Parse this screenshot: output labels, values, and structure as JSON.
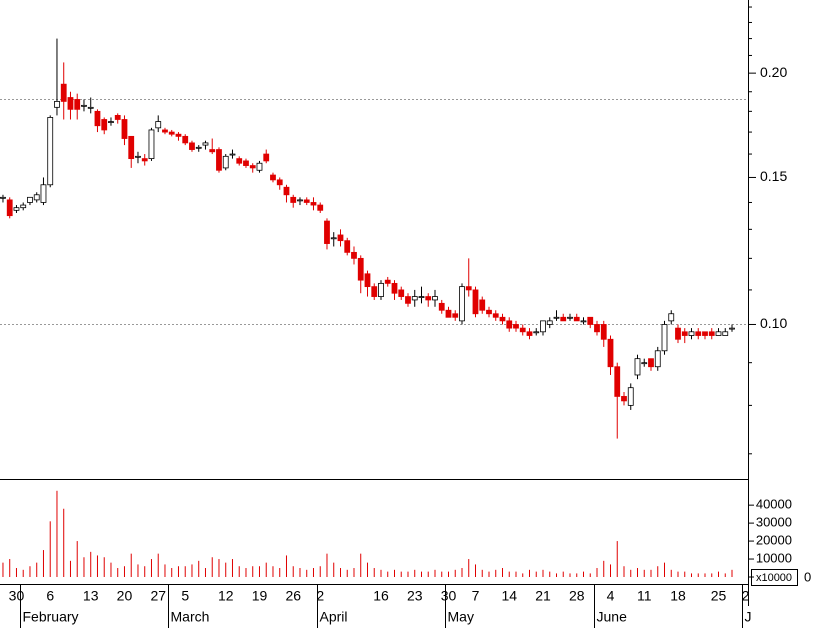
{
  "chart_data": {
    "type": "candlestick",
    "log_scale": true,
    "xlim": [
      -0.44,
      110.37
    ],
    "ylim": [
      0.0653,
      0.2447
    ],
    "yticks": [
      {
        "value": 0.2,
        "label": "0.20"
      },
      {
        "value": 0.15,
        "label": "0.15"
      },
      {
        "value": 0.1,
        "label": "0.10"
      }
    ],
    "yticks_minor": [
      0.24,
      0.23,
      0.22,
      0.21,
      0.19,
      0.18,
      0.17,
      0.16,
      0.14,
      0.13,
      0.12,
      0.11,
      0.09,
      0.08,
      0.07
    ],
    "hlines": [
      0.186,
      0.1
    ],
    "up_color": "#ffffff",
    "down_color": "#e00000",
    "open": [
      0.142,
      0.141,
      0.137,
      0.138,
      0.14,
      0.141,
      0.14,
      0.147,
      0.182,
      0.194,
      0.187,
      0.186,
      0.183,
      0.182,
      0.18,
      0.176,
      0.175,
      0.178,
      0.176,
      0.168,
      0.159,
      0.158,
      0.158,
      0.172,
      0.171,
      0.17,
      0.169,
      0.168,
      0.165,
      0.163,
      0.164,
      0.162,
      0.162,
      0.154,
      0.16,
      0.158,
      0.157,
      0.155,
      0.153,
      0.16,
      0.151,
      0.149,
      0.146,
      0.142,
      0.141,
      0.141,
      0.14,
      0.139,
      0.133,
      0.127,
      0.128,
      0.126,
      0.122,
      0.12,
      0.115,
      0.111,
      0.108,
      0.113,
      0.112,
      0.11,
      0.108,
      0.107,
      0.108,
      0.108,
      0.107,
      0.106,
      0.104,
      0.103,
      0.101,
      0.111,
      0.11,
      0.107,
      0.104,
      0.103,
      0.102,
      0.101,
      0.1,
      0.099,
      0.098,
      0.098,
      0.098,
      0.1,
      0.102,
      0.102,
      0.102,
      0.102,
      0.101,
      0.102,
      0.1,
      0.1,
      0.096,
      0.089,
      0.082,
      0.08,
      0.087,
      0.09,
      0.091,
      0.089,
      0.093,
      0.101,
      0.099,
      0.098,
      0.097,
      0.098,
      0.098,
      0.098,
      0.097,
      0.097,
      0.099
    ],
    "high": [
      0.143,
      0.142,
      0.139,
      0.14,
      0.142,
      0.144,
      0.15,
      0.178,
      0.22,
      0.206,
      0.19,
      0.189,
      0.186,
      0.187,
      0.181,
      0.177,
      0.177,
      0.179,
      0.178,
      0.168,
      0.161,
      0.16,
      0.172,
      0.178,
      0.172,
      0.171,
      0.17,
      0.169,
      0.166,
      0.164,
      0.166,
      0.167,
      0.163,
      0.16,
      0.162,
      0.159,
      0.158,
      0.156,
      0.157,
      0.162,
      0.152,
      0.15,
      0.147,
      0.143,
      0.142,
      0.142,
      0.142,
      0.14,
      0.134,
      0.129,
      0.13,
      0.127,
      0.124,
      0.121,
      0.116,
      0.112,
      0.113,
      0.114,
      0.113,
      0.111,
      0.109,
      0.11,
      0.111,
      0.109,
      0.11,
      0.107,
      0.105,
      0.104,
      0.112,
      0.12,
      0.111,
      0.108,
      0.105,
      0.104,
      0.103,
      0.102,
      0.101,
      0.1,
      0.099,
      0.099,
      0.101,
      0.102,
      0.104,
      0.103,
      0.103,
      0.103,
      0.102,
      0.102,
      0.101,
      0.101,
      0.097,
      0.09,
      0.083,
      0.085,
      0.092,
      0.091,
      0.091,
      0.094,
      0.101,
      0.104,
      0.1,
      0.099,
      0.099,
      0.099,
      0.098,
      0.099,
      0.099,
      0.099,
      0.1
    ],
    "low": [
      0.14,
      0.134,
      0.136,
      0.137,
      0.139,
      0.14,
      0.139,
      0.146,
      0.178,
      0.176,
      0.176,
      0.176,
      0.18,
      0.179,
      0.17,
      0.169,
      0.173,
      0.174,
      0.164,
      0.154,
      0.156,
      0.155,
      0.157,
      0.17,
      0.169,
      0.168,
      0.166,
      0.164,
      0.161,
      0.161,
      0.162,
      0.16,
      0.152,
      0.153,
      0.158,
      0.155,
      0.154,
      0.152,
      0.152,
      0.156,
      0.148,
      0.145,
      0.14,
      0.138,
      0.139,
      0.139,
      0.137,
      0.136,
      0.123,
      0.124,
      0.124,
      0.121,
      0.118,
      0.109,
      0.108,
      0.107,
      0.107,
      0.111,
      0.107,
      0.107,
      0.105,
      0.105,
      0.106,
      0.105,
      0.105,
      0.103,
      0.102,
      0.101,
      0.1,
      0.108,
      0.102,
      0.103,
      0.102,
      0.101,
      0.1,
      0.098,
      0.098,
      0.097,
      0.096,
      0.097,
      0.097,
      0.099,
      0.101,
      0.101,
      0.101,
      0.101,
      0.1,
      0.099,
      0.097,
      0.094,
      0.087,
      0.073,
      0.08,
      0.079,
      0.086,
      0.089,
      0.088,
      0.088,
      0.092,
      0.1,
      0.095,
      0.095,
      0.096,
      0.096,
      0.096,
      0.096,
      0.097,
      0.097,
      0.098
    ],
    "close": [
      0.142,
      0.135,
      0.138,
      0.139,
      0.142,
      0.143,
      0.147,
      0.177,
      0.185,
      0.185,
      0.181,
      0.181,
      0.183,
      0.182,
      0.173,
      0.171,
      0.175,
      0.176,
      0.167,
      0.158,
      0.159,
      0.157,
      0.171,
      0.175,
      0.17,
      0.169,
      0.168,
      0.165,
      0.162,
      0.163,
      0.165,
      0.161,
      0.153,
      0.159,
      0.16,
      0.156,
      0.155,
      0.154,
      0.156,
      0.157,
      0.149,
      0.147,
      0.143,
      0.14,
      0.141,
      0.14,
      0.139,
      0.137,
      0.125,
      0.127,
      0.126,
      0.122,
      0.12,
      0.113,
      0.111,
      0.108,
      0.112,
      0.112,
      0.109,
      0.108,
      0.106,
      0.108,
      0.108,
      0.107,
      0.108,
      0.104,
      0.102,
      0.102,
      0.111,
      0.11,
      0.103,
      0.104,
      0.103,
      0.102,
      0.101,
      0.099,
      0.099,
      0.098,
      0.097,
      0.098,
      0.101,
      0.101,
      0.102,
      0.101,
      0.102,
      0.101,
      0.101,
      0.1,
      0.098,
      0.096,
      0.089,
      0.082,
      0.081,
      0.084,
      0.091,
      0.09,
      0.089,
      0.093,
      0.1,
      0.103,
      0.096,
      0.097,
      0.098,
      0.097,
      0.097,
      0.097,
      0.098,
      0.098,
      0.099
    ],
    "volume": [
      8000,
      10000,
      5000,
      4000,
      6000,
      8000,
      15000,
      31000,
      48000,
      38000,
      9000,
      20000,
      11000,
      14000,
      12000,
      11000,
      8000,
      5000,
      6000,
      13000,
      7000,
      6000,
      10000,
      13000,
      7000,
      5000,
      6000,
      6000,
      7000,
      9000,
      5000,
      11000,
      10000,
      8000,
      10000,
      6000,
      5000,
      6000,
      6000,
      8000,
      6000,
      5000,
      12000,
      6000,
      5000,
      4000,
      5000,
      6000,
      13000,
      8000,
      5000,
      4000,
      5000,
      13000,
      8000,
      5000,
      4000,
      3000,
      4000,
      3000,
      3000,
      4000,
      3000,
      3000,
      4000,
      3000,
      3000,
      4000,
      5000,
      10000,
      7000,
      4000,
      3000,
      4000,
      5000,
      3000,
      3000,
      2000,
      4000,
      3000,
      4000,
      3000,
      2000,
      3000,
      2000,
      2000,
      3000,
      2000,
      5000,
      9000,
      7000,
      20000,
      6000,
      4000,
      5000,
      4000,
      4000,
      6000,
      8000,
      4000,
      3000,
      3000,
      2000,
      2000,
      2000,
      2000,
      3000,
      2000,
      4000
    ],
    "volume_color": "#e00000",
    "volume_ylim": [
      0,
      54000
    ],
    "volume_yticks": [
      0,
      10000,
      20000,
      30000,
      40000
    ],
    "volume_unit": "x10000",
    "xticks": [
      {
        "value": 2,
        "label": "30"
      },
      {
        "value": 7,
        "label": "6"
      },
      {
        "value": 13,
        "label": "13"
      },
      {
        "value": 18,
        "label": "20"
      },
      {
        "value": 23,
        "label": "27"
      },
      {
        "value": 27,
        "label": "5"
      },
      {
        "value": 33,
        "label": "12"
      },
      {
        "value": 38,
        "label": "19"
      },
      {
        "value": 43,
        "label": "26"
      },
      {
        "value": 47,
        "label": "2"
      },
      {
        "value": 56,
        "label": "16"
      },
      {
        "value": 61,
        "label": "23"
      },
      {
        "value": 66,
        "label": "30"
      },
      {
        "value": 70,
        "label": "7"
      },
      {
        "value": 75,
        "label": "14"
      },
      {
        "value": 80,
        "label": "21"
      },
      {
        "value": 85,
        "label": "28"
      },
      {
        "value": 90,
        "label": "4"
      },
      {
        "value": 95,
        "label": "11"
      },
      {
        "value": 100,
        "label": "18"
      },
      {
        "value": 106,
        "label": "25"
      },
      {
        "value": 110,
        "label": "2"
      }
    ],
    "month_ticks": [
      {
        "value": 3,
        "label": "February"
      },
      {
        "value": 25,
        "label": "March"
      },
      {
        "value": 47,
        "label": "April"
      },
      {
        "value": 66,
        "label": "May"
      },
      {
        "value": 88,
        "label": "June"
      },
      {
        "value": 110,
        "label": "J"
      }
    ]
  }
}
